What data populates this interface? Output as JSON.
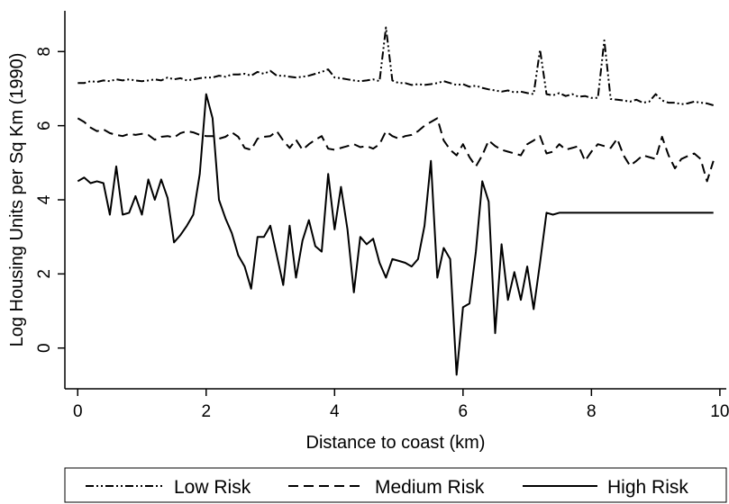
{
  "chart_data": {
    "type": "line",
    "xlabel": "Distance to coast (km)",
    "ylabel": "Log Housing Units per Sq Km (1990)",
    "xlim": [
      -0.2,
      10.1
    ],
    "ylim": [
      -1.1,
      9.1
    ],
    "xticks": [
      "0",
      "2",
      "4",
      "6",
      "8",
      "10"
    ],
    "yticks": [
      "0",
      "2",
      "4",
      "6",
      "8"
    ],
    "grid": false,
    "legend_position": "bottom",
    "series": [
      {
        "name": "Low Risk",
        "style": "dash-dot-dot",
        "x": [
          0,
          0.1,
          0.2,
          0.3,
          0.4,
          0.5,
          0.6,
          0.7,
          0.8,
          0.9,
          1.0,
          1.1,
          1.2,
          1.3,
          1.4,
          1.5,
          1.6,
          1.7,
          1.8,
          1.9,
          2.0,
          2.1,
          2.2,
          2.3,
          2.4,
          2.5,
          2.6,
          2.7,
          2.8,
          2.9,
          3.0,
          3.1,
          3.2,
          3.3,
          3.4,
          3.5,
          3.6,
          3.7,
          3.8,
          3.9,
          4.0,
          4.1,
          4.2,
          4.3,
          4.4,
          4.5,
          4.6,
          4.7,
          4.8,
          4.9,
          5.0,
          5.1,
          5.2,
          5.3,
          5.4,
          5.5,
          5.6,
          5.7,
          5.8,
          5.9,
          6.0,
          6.1,
          6.2,
          6.3,
          6.4,
          6.5,
          6.6,
          6.7,
          6.8,
          6.9,
          7.0,
          7.1,
          7.2,
          7.3,
          7.4,
          7.5,
          7.6,
          7.7,
          7.8,
          7.9,
          8.0,
          8.1,
          8.2,
          8.3,
          8.4,
          8.5,
          8.6,
          8.7,
          8.8,
          8.9,
          9.0,
          9.1,
          9.2,
          9.3,
          9.4,
          9.5,
          9.6,
          9.7,
          9.8,
          9.9
        ],
        "y": [
          7.15,
          7.15,
          7.2,
          7.18,
          7.22,
          7.2,
          7.25,
          7.22,
          7.25,
          7.22,
          7.2,
          7.22,
          7.25,
          7.22,
          7.3,
          7.25,
          7.28,
          7.22,
          7.25,
          7.28,
          7.3,
          7.3,
          7.35,
          7.32,
          7.38,
          7.38,
          7.4,
          7.35,
          7.45,
          7.4,
          7.48,
          7.35,
          7.35,
          7.32,
          7.3,
          7.32,
          7.35,
          7.4,
          7.45,
          7.52,
          7.3,
          7.28,
          7.25,
          7.22,
          7.2,
          7.22,
          7.25,
          7.2,
          8.65,
          7.22,
          7.15,
          7.15,
          7.1,
          7.12,
          7.1,
          7.12,
          7.15,
          7.2,
          7.15,
          7.1,
          7.12,
          7.05,
          7.08,
          7.02,
          6.98,
          6.95,
          6.92,
          6.95,
          6.9,
          6.92,
          6.88,
          6.85,
          8.05,
          6.85,
          6.82,
          6.88,
          6.8,
          6.85,
          6.78,
          6.8,
          6.75,
          6.75,
          8.3,
          6.72,
          6.7,
          6.68,
          6.65,
          6.7,
          6.62,
          6.65,
          6.85,
          6.68,
          6.62,
          6.62,
          6.58,
          6.6,
          6.65,
          6.62,
          6.6,
          6.55
        ]
      },
      {
        "name": "Medium Risk",
        "style": "dashed",
        "x": [
          0,
          0.1,
          0.2,
          0.3,
          0.4,
          0.5,
          0.6,
          0.7,
          0.8,
          0.9,
          1.0,
          1.1,
          1.2,
          1.3,
          1.4,
          1.5,
          1.6,
          1.7,
          1.8,
          1.9,
          2.0,
          2.1,
          2.2,
          2.3,
          2.4,
          2.5,
          2.6,
          2.7,
          2.8,
          2.9,
          3.0,
          3.1,
          3.2,
          3.3,
          3.4,
          3.5,
          3.6,
          3.7,
          3.8,
          3.9,
          4.0,
          4.1,
          4.2,
          4.3,
          4.4,
          4.5,
          4.6,
          4.7,
          4.8,
          4.9,
          5.0,
          5.1,
          5.2,
          5.3,
          5.4,
          5.5,
          5.6,
          5.7,
          5.8,
          5.9,
          6.0,
          6.1,
          6.2,
          6.3,
          6.4,
          6.5,
          6.6,
          6.7,
          6.8,
          6.9,
          7.0,
          7.1,
          7.2,
          7.3,
          7.4,
          7.5,
          7.6,
          7.7,
          7.8,
          7.9,
          8.0,
          8.1,
          8.2,
          8.3,
          8.4,
          8.5,
          8.6,
          8.7,
          8.8,
          8.9,
          9.0,
          9.1,
          9.2,
          9.3,
          9.4,
          9.5,
          9.6,
          9.7,
          9.8,
          9.9
        ],
        "y": [
          6.2,
          6.1,
          5.95,
          5.85,
          5.9,
          5.8,
          5.75,
          5.72,
          5.78,
          5.75,
          5.78,
          5.75,
          5.62,
          5.7,
          5.72,
          5.68,
          5.8,
          5.85,
          5.82,
          5.75,
          5.72,
          5.72,
          5.65,
          5.7,
          5.82,
          5.7,
          5.4,
          5.35,
          5.65,
          5.7,
          5.72,
          5.85,
          5.6,
          5.4,
          5.62,
          5.35,
          5.5,
          5.62,
          5.72,
          5.38,
          5.35,
          5.4,
          5.45,
          5.5,
          5.42,
          5.45,
          5.38,
          5.5,
          5.85,
          5.72,
          5.65,
          5.72,
          5.75,
          5.85,
          6.0,
          6.1,
          6.2,
          5.6,
          5.35,
          5.2,
          5.5,
          5.15,
          4.9,
          5.2,
          5.6,
          5.45,
          5.35,
          5.3,
          5.25,
          5.2,
          5.5,
          5.6,
          5.72,
          5.25,
          5.3,
          5.5,
          5.35,
          5.4,
          5.45,
          5.05,
          5.3,
          5.5,
          5.45,
          5.4,
          5.65,
          5.2,
          4.92,
          5.05,
          5.2,
          5.15,
          5.1,
          5.7,
          5.2,
          4.85,
          5.1,
          5.18,
          5.25,
          5.1,
          4.5,
          5.05
        ]
      },
      {
        "name": "High Risk",
        "style": "solid",
        "x": [
          0,
          0.1,
          0.2,
          0.3,
          0.4,
          0.5,
          0.6,
          0.7,
          0.8,
          0.9,
          1.0,
          1.1,
          1.2,
          1.3,
          1.4,
          1.5,
          1.6,
          1.7,
          1.8,
          1.9,
          2.0,
          2.1,
          2.2,
          2.3,
          2.4,
          2.5,
          2.6,
          2.7,
          2.8,
          2.9,
          3.0,
          3.1,
          3.2,
          3.3,
          3.4,
          3.5,
          3.6,
          3.7,
          3.8,
          3.9,
          4.0,
          4.1,
          4.2,
          4.3,
          4.4,
          4.5,
          4.6,
          4.7,
          4.8,
          4.9,
          5.0,
          5.1,
          5.2,
          5.3,
          5.4,
          5.5,
          5.6,
          5.7,
          5.8,
          5.9,
          6.0,
          6.1,
          6.2,
          6.3,
          6.4,
          6.5,
          6.6,
          6.7,
          6.8,
          6.9,
          7.0,
          7.1,
          7.2,
          7.3,
          7.4,
          7.5,
          7.6,
          7.7,
          7.8,
          7.9,
          8.0,
          8.1,
          8.2,
          8.3,
          8.4,
          8.5,
          8.6,
          8.7,
          8.8,
          8.9,
          9.0,
          9.1,
          9.2,
          9.3,
          9.4,
          9.5,
          9.6,
          9.7,
          9.8,
          9.9
        ],
        "y": [
          4.5,
          4.6,
          4.45,
          4.5,
          4.45,
          3.6,
          4.9,
          3.6,
          3.65,
          4.1,
          3.6,
          4.55,
          4.0,
          4.55,
          4.05,
          2.85,
          3.05,
          3.3,
          3.6,
          4.7,
          6.85,
          6.2,
          4.0,
          3.5,
          3.1,
          2.5,
          2.2,
          1.6,
          3.0,
          3.0,
          3.3,
          2.5,
          1.7,
          3.3,
          1.9,
          2.9,
          3.45,
          2.75,
          2.6,
          4.7,
          3.2,
          4.35,
          3.2,
          1.5,
          3.0,
          2.8,
          2.95,
          2.3,
          1.9,
          2.4,
          2.35,
          2.3,
          2.2,
          2.4,
          3.3,
          5.05,
          1.9,
          2.7,
          2.4,
          -0.72,
          1.1,
          1.2,
          2.6,
          4.5,
          3.95,
          0.4,
          2.8,
          1.3,
          2.05,
          1.3,
          2.2,
          1.05,
          2.3,
          3.65,
          3.6,
          3.65,
          3.65,
          3.65,
          3.65,
          3.65,
          3.65,
          3.65,
          3.65,
          3.65,
          3.65,
          3.65,
          3.65,
          3.65,
          3.65,
          3.65,
          3.65,
          3.65,
          3.65,
          3.65,
          3.65,
          3.65,
          3.65,
          3.65,
          3.65,
          3.65
        ]
      }
    ]
  }
}
